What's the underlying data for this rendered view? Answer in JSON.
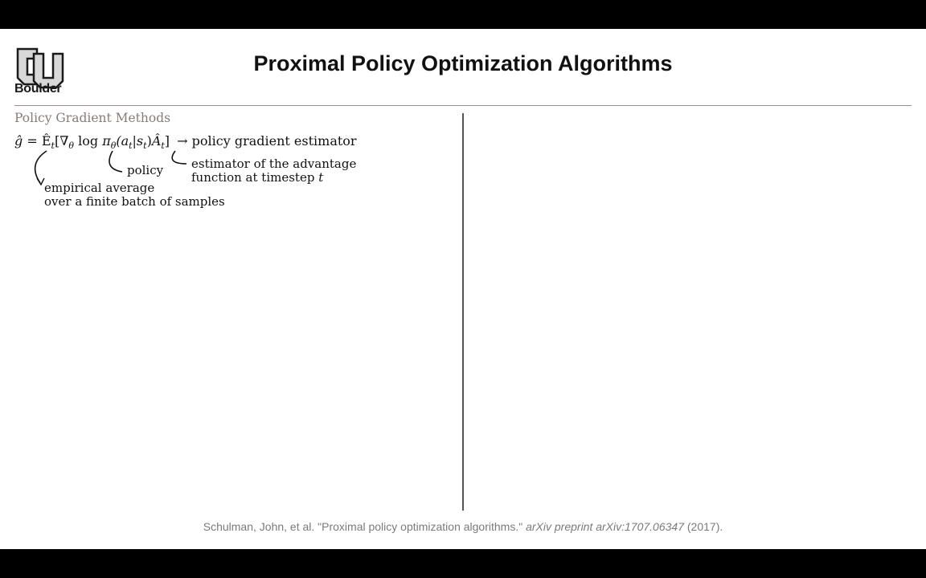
{
  "logo": {
    "text": "Boulder"
  },
  "title": "Proximal Policy Optimization Algorithms",
  "section_title": "Policy Gradient Methods",
  "equation": {
    "lhs": "ĝ",
    "eq": "=",
    "expect": "Ê",
    "expect_sub": "t",
    "open": "[",
    "nabla": "∇",
    "nabla_sub": "θ",
    "log": "log",
    "pi": "π",
    "pi_sub": "θ",
    "args": "(a",
    "a_sub": "t",
    "bar": "|s",
    "s_sub": "t",
    "close_paren": ")",
    "adv": "Â",
    "adv_sub": "t",
    "close": "]",
    "arrow": "→",
    "result": "policy gradient estimator"
  },
  "annotations": {
    "policy": "policy",
    "advantage_line1": "estimator of the advantage",
    "advantage_line2": "function at timestep",
    "advantage_var": "t",
    "empirical_line1": "empirical average",
    "empirical_line2": "over a finite batch of samples"
  },
  "citation": {
    "authors": "Schulman, John, et al. \"Proximal policy optimization algorithms.\"",
    "venue": "arXiv preprint arXiv:1707.06347",
    "year": "(2017)."
  }
}
